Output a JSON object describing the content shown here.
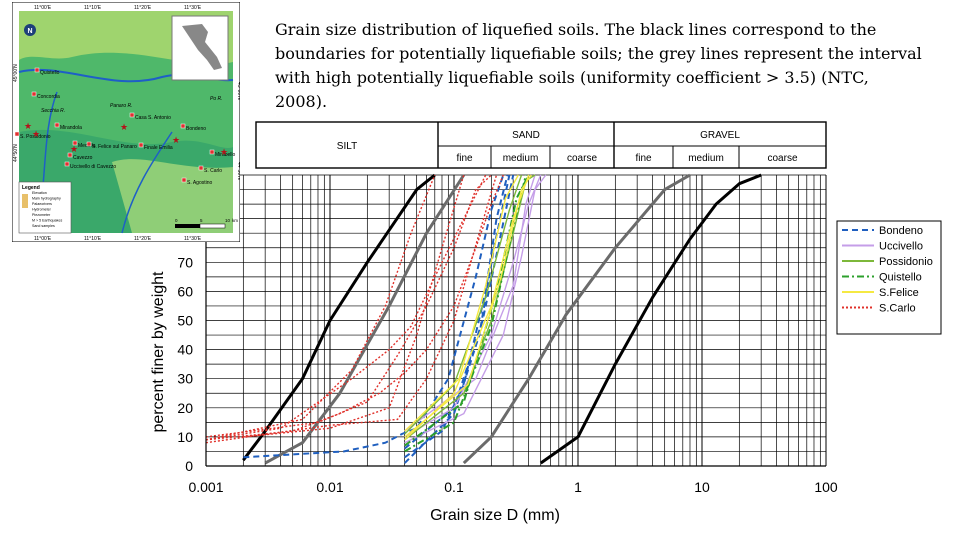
{
  "caption": "Grain size distribution of liquefied soils. The black lines correspond to the boundaries for potentially liquefiable soils; the grey lines represent the interval with high potentially liquefiable soils (uniformity coefficient > 3.5) (NTC, 2008).",
  "map": {
    "top_coords": [
      "11°00'E",
      "11°10'E",
      "11°20'E",
      "11°30'E"
    ],
    "bottom_coords": [
      "11°00'E",
      "11°10'E",
      "11°20'E",
      "11°30'E"
    ],
    "left_coords": [
      "45°00'N",
      "44°50'N"
    ],
    "right_coords": [
      "45°00'N",
      "44°50'N"
    ],
    "places": [
      "Quistello",
      "Concordia",
      "Mirandola",
      "S. Possidonio",
      "Medolla",
      "Cavezzo",
      "S. Felice sul Panaro",
      "Uccivello di Cavezzo",
      "Finale Emilia",
      "Casa S. Antonio",
      "Bondeno",
      "S. Carlo",
      "Mirabello",
      "S. Agostino",
      "S. Martino Spino",
      "Po R.",
      "Panaro R.",
      "Secchia R."
    ],
    "legend_title": "Legend",
    "legend_items": [
      "Elevation",
      "Main hydrography",
      "Palaeorivers",
      "Hydrometer",
      "Piezometer",
      "M > 5 Earthquakes",
      "Sand samples"
    ],
    "scale": [
      "0",
      "5",
      "10",
      "km"
    ],
    "north": "N"
  },
  "header": {
    "silt": "SILT",
    "sand": "SAND",
    "gravel": "GRAVEL",
    "subdivisions": [
      "fine",
      "medium",
      "coarse",
      "fine",
      "medium",
      "coarse"
    ]
  },
  "chart_data": {
    "type": "line",
    "title": "",
    "xlabel": "Grain size D (mm)",
    "ylabel": "percent finer by weight",
    "x_scale": "log",
    "xlim": [
      0.001,
      100
    ],
    "ylim": [
      0,
      100
    ],
    "x_ticks": [
      "0.001",
      "0.01",
      "0.1",
      "1",
      "10",
      "100"
    ],
    "y_ticks": [
      "0",
      "10",
      "20",
      "30",
      "40",
      "50",
      "60",
      "70"
    ],
    "grid": true,
    "legend_position": "right",
    "boundaries": [
      {
        "kind": "black",
        "points": [
          [
            0.002,
            2
          ],
          [
            0.003,
            12
          ],
          [
            0.006,
            30
          ],
          [
            0.01,
            50
          ],
          [
            0.02,
            70
          ],
          [
            0.05,
            95
          ],
          [
            0.07,
            100
          ]
        ]
      },
      {
        "kind": "grey",
        "points": [
          [
            0.003,
            1
          ],
          [
            0.006,
            8
          ],
          [
            0.012,
            25
          ],
          [
            0.03,
            55
          ],
          [
            0.06,
            80
          ],
          [
            0.12,
            100
          ]
        ]
      },
      {
        "kind": "grey",
        "points": [
          [
            0.12,
            1
          ],
          [
            0.2,
            10
          ],
          [
            0.4,
            30
          ],
          [
            0.8,
            52
          ],
          [
            2,
            75
          ],
          [
            5,
            95
          ],
          [
            8,
            100
          ]
        ]
      },
      {
        "kind": "black",
        "points": [
          [
            0.5,
            1
          ],
          [
            1,
            10
          ],
          [
            2,
            35
          ],
          [
            4,
            58
          ],
          [
            8,
            78
          ],
          [
            13,
            90
          ],
          [
            20,
            97
          ],
          [
            30,
            100
          ]
        ]
      }
    ],
    "series": [
      {
        "name": "Bondeno",
        "color": "#1f5fbf",
        "dash": "dash",
        "curves": [
          [
            [
              0.002,
              3
            ],
            [
              0.005,
              4
            ],
            [
              0.013,
              5
            ],
            [
              0.028,
              8
            ],
            [
              0.038,
              11
            ],
            [
              0.05,
              13
            ],
            [
              0.09,
              30
            ],
            [
              0.15,
              65
            ],
            [
              0.2,
              88
            ],
            [
              0.25,
              100
            ]
          ],
          [
            [
              0.04,
              3
            ],
            [
              0.08,
              12
            ],
            [
              0.12,
              28
            ],
            [
              0.18,
              60
            ],
            [
              0.22,
              85
            ],
            [
              0.27,
              100
            ]
          ],
          [
            [
              0.04,
              6
            ],
            [
              0.1,
              20
            ],
            [
              0.17,
              50
            ],
            [
              0.24,
              80
            ],
            [
              0.3,
              100
            ]
          ],
          [
            [
              0.04,
              1
            ],
            [
              0.1,
              18
            ],
            [
              0.16,
              45
            ],
            [
              0.21,
              75
            ],
            [
              0.28,
              100
            ]
          ]
        ]
      },
      {
        "name": "Uccivello",
        "color": "#c59ee8",
        "dash": "solid",
        "curves": [
          [
            [
              0.04,
              10
            ],
            [
              0.1,
              20
            ],
            [
              0.2,
              45
            ],
            [
              0.3,
              70
            ],
            [
              0.4,
              90
            ],
            [
              0.5,
              100
            ]
          ],
          [
            [
              0.04,
              8
            ],
            [
              0.12,
              18
            ],
            [
              0.25,
              45
            ],
            [
              0.35,
              72
            ],
            [
              0.45,
              95
            ],
            [
              0.55,
              100
            ]
          ],
          [
            [
              0.04,
              12
            ],
            [
              0.15,
              30
            ],
            [
              0.3,
              62
            ],
            [
              0.38,
              90
            ],
            [
              0.45,
              100
            ]
          ]
        ]
      },
      {
        "name": "Possidonio",
        "color": "#7db83a",
        "dash": "solid",
        "curves": [
          [
            [
              0.04,
              9
            ],
            [
              0.12,
              25
            ],
            [
              0.2,
              50
            ],
            [
              0.3,
              80
            ],
            [
              0.38,
              98
            ],
            [
              0.45,
              100
            ]
          ],
          [
            [
              0.04,
              11
            ],
            [
              0.1,
              28
            ],
            [
              0.18,
              58
            ],
            [
              0.28,
              88
            ],
            [
              0.35,
              100
            ]
          ]
        ]
      },
      {
        "name": "Quistello",
        "color": "#2ca02c",
        "dash": "dashdot",
        "curves": [
          [
            [
              0.04,
              5
            ],
            [
              0.1,
              15
            ],
            [
              0.2,
              48
            ],
            [
              0.3,
              82
            ],
            [
              0.38,
              100
            ]
          ],
          [
            [
              0.04,
              7
            ],
            [
              0.12,
              22
            ],
            [
              0.22,
              60
            ],
            [
              0.32,
              92
            ],
            [
              0.4,
              100
            ]
          ]
        ]
      },
      {
        "name": "S.Felice",
        "color": "#f5e942",
        "dash": "solid",
        "curves": [
          [
            [
              0.04,
              9
            ],
            [
              0.1,
              25
            ],
            [
              0.2,
              55
            ],
            [
              0.3,
              85
            ],
            [
              0.4,
              100
            ]
          ],
          [
            [
              0.04,
              12
            ],
            [
              0.11,
              30
            ],
            [
              0.18,
              62
            ],
            [
              0.26,
              92
            ],
            [
              0.33,
              100
            ]
          ],
          [
            [
              0.04,
              10
            ],
            [
              0.13,
              28
            ],
            [
              0.24,
              65
            ],
            [
              0.35,
              95
            ],
            [
              0.42,
              100
            ]
          ]
        ]
      },
      {
        "name": "S.Carlo",
        "color": "#e0302a",
        "dash": "dot",
        "curves": [
          [
            [
              0.001,
              9
            ],
            [
              0.005,
              12
            ],
            [
              0.012,
              18
            ],
            [
              0.025,
              25
            ],
            [
              0.04,
              32
            ],
            [
              0.06,
              40
            ],
            [
              0.1,
              55
            ],
            [
              0.15,
              75
            ],
            [
              0.2,
              90
            ],
            [
              0.25,
              100
            ]
          ],
          [
            [
              0.001,
              9
            ],
            [
              0.004,
              13
            ],
            [
              0.015,
              30
            ],
            [
              0.03,
              40
            ],
            [
              0.045,
              48
            ],
            [
              0.07,
              65
            ],
            [
              0.12,
              85
            ],
            [
              0.18,
              100
            ]
          ],
          [
            [
              0.001,
              10
            ],
            [
              0.008,
              15
            ],
            [
              0.02,
              22
            ],
            [
              0.035,
              38
            ],
            [
              0.06,
              55
            ],
            [
              0.1,
              75
            ],
            [
              0.15,
              95
            ],
            [
              0.2,
              100
            ]
          ],
          [
            [
              0.001,
              8
            ],
            [
              0.01,
              14
            ],
            [
              0.035,
              16
            ],
            [
              0.06,
              30
            ],
            [
              0.1,
              50
            ],
            [
              0.16,
              80
            ],
            [
              0.22,
              100
            ]
          ],
          [
            [
              0.002,
              10
            ],
            [
              0.01,
              13
            ],
            [
              0.03,
              20
            ],
            [
              0.05,
              45
            ],
            [
              0.08,
              75
            ],
            [
              0.12,
              100
            ]
          ],
          [
            [
              0.001,
              9
            ],
            [
              0.006,
              16
            ],
            [
              0.015,
              33
            ],
            [
              0.028,
              55
            ],
            [
              0.045,
              80
            ],
            [
              0.07,
              100
            ]
          ]
        ]
      }
    ]
  }
}
